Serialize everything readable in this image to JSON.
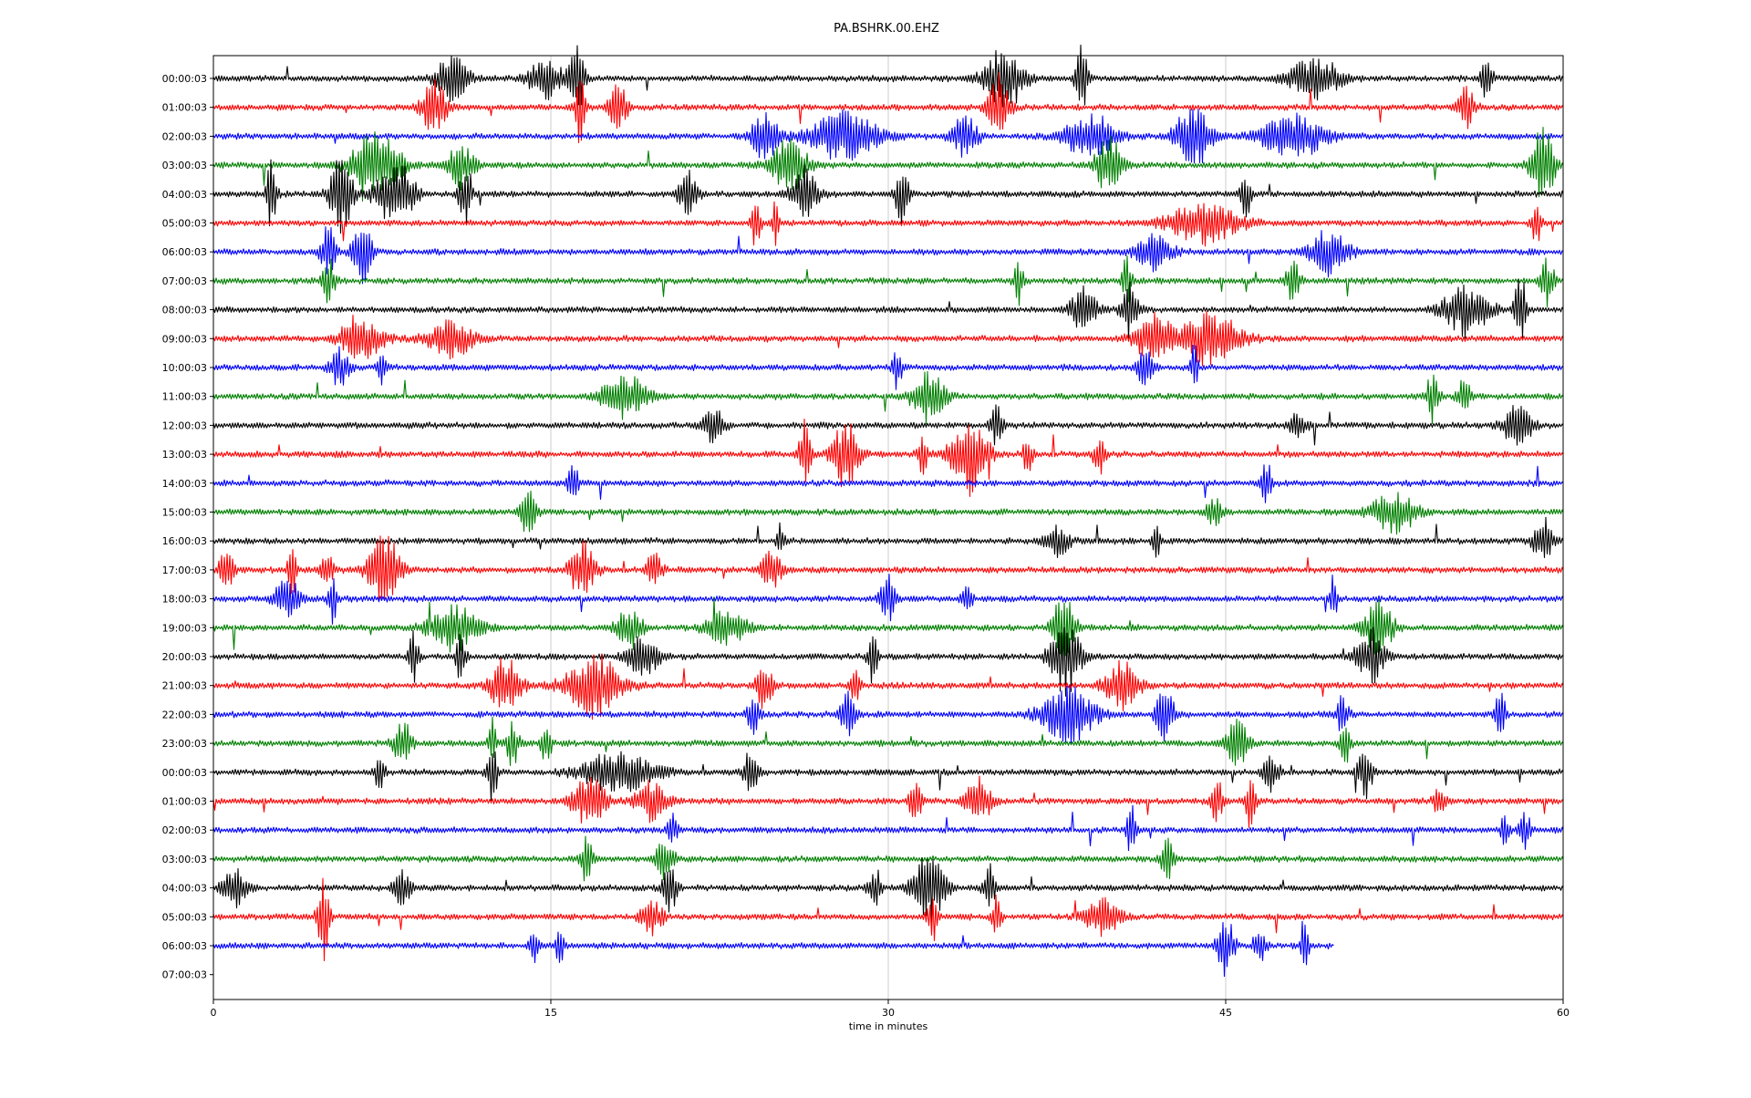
{
  "chart_data": {
    "type": "line",
    "title": "PA.BSHRK.00.EHZ",
    "xlabel": "time in minutes",
    "ylabel": "",
    "xlim": [
      0,
      60
    ],
    "x_ticks": [
      "0",
      "15",
      "30",
      "45",
      "60"
    ],
    "x_tick_values": [
      0,
      15,
      30,
      45,
      60
    ],
    "vertical_grid": true,
    "grid_color": "#cccccc",
    "row_labels": [
      "00:00:03",
      "01:00:03",
      "02:00:03",
      "03:00:03",
      "04:00:03",
      "05:00:03",
      "06:00:03",
      "07:00:03",
      "08:00:03",
      "09:00:03",
      "10:00:03",
      "11:00:03",
      "12:00:03",
      "13:00:03",
      "14:00:03",
      "15:00:03",
      "16:00:03",
      "17:00:03",
      "18:00:03",
      "19:00:03",
      "20:00:03",
      "21:00:03",
      "22:00:03",
      "23:00:03",
      "00:00:03",
      "01:00:03",
      "02:00:03",
      "03:00:03",
      "04:00:03",
      "05:00:03",
      "06:00:03",
      "07:00:03"
    ],
    "color_cycle": [
      "#000000",
      "#ff0000",
      "#0000ff",
      "#008000"
    ],
    "trace_end_minutes": [
      60,
      60,
      60,
      60,
      60,
      60,
      60,
      60,
      60,
      60,
      60,
      60,
      60,
      60,
      60,
      60,
      60,
      60,
      60,
      60,
      60,
      60,
      60,
      60,
      60,
      60,
      60,
      60,
      60,
      60,
      49.8,
      0
    ],
    "bursts": [
      [
        [
          10.6,
          1.2,
          0.8
        ],
        [
          14.8,
          1.4,
          0.7
        ],
        [
          16.2,
          0.6,
          1
        ],
        [
          35.2,
          1.6,
          1.1
        ],
        [
          38.6,
          0.4,
          1.1
        ],
        [
          49,
          2.2,
          0.7
        ],
        [
          56.6,
          0.4,
          0.8
        ]
      ],
      [
        [
          9.8,
          1,
          0.9
        ],
        [
          16.3,
          0.3,
          1.3
        ],
        [
          18,
          0.6,
          0.9
        ],
        [
          34.9,
          0.8,
          1.2
        ],
        [
          55.7,
          0.6,
          0.7
        ]
      ],
      [
        [
          24.5,
          1,
          0.9
        ],
        [
          28,
          3,
          0.8
        ],
        [
          33.4,
          1,
          0.7
        ],
        [
          39,
          2,
          0.8
        ],
        [
          43.6,
          1.5,
          1.1
        ],
        [
          48,
          2.5,
          0.8
        ]
      ],
      [
        [
          7.2,
          2,
          1.2
        ],
        [
          11,
          1,
          0.8
        ],
        [
          25.6,
          1.5,
          0.9
        ],
        [
          39.8,
          1,
          1
        ],
        [
          59.1,
          0.9,
          1.5
        ]
      ],
      [
        [
          2.6,
          0.3,
          1.5
        ],
        [
          5.7,
          0.9,
          1.3
        ],
        [
          8.1,
          1.5,
          1.2
        ],
        [
          11.2,
          0.4,
          1.3
        ],
        [
          21.1,
          0.7,
          0.9
        ],
        [
          26.3,
          1,
          1
        ],
        [
          30.6,
          0.4,
          1.2
        ],
        [
          45.9,
          0.3,
          0.8
        ]
      ],
      [
        [
          24.1,
          0.3,
          0.9
        ],
        [
          25,
          0.2,
          0.8
        ],
        [
          44,
          3,
          0.7
        ],
        [
          58.8,
          0.3,
          0.8
        ]
      ],
      [
        [
          5.1,
          0.5,
          1
        ],
        [
          6.6,
          0.6,
          1.5
        ],
        [
          41.8,
          1.5,
          0.6
        ],
        [
          49.6,
          1.5,
          0.8
        ]
      ],
      [
        [
          5.1,
          0.5,
          0.8
        ],
        [
          35.8,
          0.3,
          0.8
        ],
        [
          40.6,
          0.3,
          0.9
        ],
        [
          48,
          0.5,
          0.7
        ],
        [
          59.3,
          0.5,
          0.8
        ]
      ],
      [
        [
          38.7,
          1,
          0.8
        ],
        [
          40.7,
          0.6,
          1
        ],
        [
          55.7,
          1.8,
          0.9
        ],
        [
          58.1,
          0.4,
          1.2
        ]
      ],
      [
        [
          6.6,
          1.8,
          0.7
        ],
        [
          10.5,
          1.8,
          0.7
        ],
        [
          41.8,
          1.5,
          0.8
        ],
        [
          44.3,
          2.5,
          0.9
        ]
      ],
      [
        [
          5.6,
          0.7,
          0.7
        ],
        [
          7.5,
          0.3,
          0.6
        ],
        [
          30.4,
          0.3,
          0.7
        ],
        [
          41.4,
          0.6,
          0.6
        ],
        [
          43.6,
          0.2,
          0.8
        ]
      ],
      [
        [
          18.3,
          1.8,
          0.8
        ],
        [
          31.8,
          1.3,
          0.9
        ],
        [
          54.2,
          0.4,
          0.9
        ],
        [
          55.6,
          0.4,
          0.8
        ]
      ],
      [
        [
          22.2,
          0.8,
          0.6
        ],
        [
          34.8,
          0.4,
          0.7
        ],
        [
          48.2,
          0.6,
          0.5
        ],
        [
          58,
          1.1,
          0.8
        ]
      ],
      [
        [
          26.3,
          0.4,
          1.2
        ],
        [
          28.1,
          1,
          1.2
        ],
        [
          31.5,
          0.3,
          0.8
        ],
        [
          33.6,
          1.4,
          1.4
        ],
        [
          36.2,
          0.3,
          0.7
        ],
        [
          39.4,
          0.4,
          0.7
        ]
      ],
      [
        [
          16,
          0.3,
          0.9
        ],
        [
          46.8,
          0.3,
          0.9
        ]
      ],
      [
        [
          14,
          0.6,
          0.8
        ],
        [
          44.5,
          0.5,
          0.6
        ],
        [
          52.5,
          1.8,
          0.7
        ]
      ],
      [
        [
          25.2,
          0.2,
          0.7
        ],
        [
          37.5,
          1,
          0.5
        ],
        [
          41.9,
          0.2,
          0.8
        ],
        [
          59.1,
          0.7,
          0.8
        ]
      ],
      [
        [
          0.6,
          0.5,
          0.9
        ],
        [
          3.5,
          0.3,
          0.9
        ],
        [
          5,
          0.4,
          0.8
        ],
        [
          7.6,
          1.2,
          1.3
        ],
        [
          16.4,
          1,
          1
        ],
        [
          19.6,
          0.5,
          0.7
        ],
        [
          24.8,
          0.8,
          0.6
        ]
      ],
      [
        [
          3.3,
          1,
          0.7
        ],
        [
          5.3,
          0.3,
          0.8
        ],
        [
          30,
          0.6,
          0.8
        ],
        [
          33.5,
          0.3,
          0.6
        ],
        [
          49.8,
          0.2,
          0.9
        ]
      ],
      [
        [
          10.7,
          2,
          0.8
        ],
        [
          18.5,
          1,
          0.7
        ],
        [
          22.8,
          1.6,
          0.6
        ],
        [
          37.8,
          0.8,
          1.2
        ],
        [
          51.8,
          1.2,
          0.9
        ]
      ],
      [
        [
          8.9,
          0.3,
          0.9
        ],
        [
          11,
          0.3,
          1
        ],
        [
          19.1,
          1.2,
          0.7
        ],
        [
          29.3,
          0.3,
          0.9
        ],
        [
          37.9,
          1.2,
          1.3
        ],
        [
          51.4,
          1,
          1
        ]
      ],
      [
        [
          13,
          1.2,
          1
        ],
        [
          16.9,
          2.2,
          1.1
        ],
        [
          24.5,
          0.6,
          0.8
        ],
        [
          28.5,
          0.3,
          0.7
        ],
        [
          40.4,
          1.4,
          0.8
        ]
      ],
      [
        [
          24,
          0.4,
          0.7
        ],
        [
          28.2,
          0.5,
          0.8
        ],
        [
          38,
          2.2,
          1
        ],
        [
          42.3,
          0.6,
          1.1
        ],
        [
          50.2,
          0.4,
          0.7
        ],
        [
          57.2,
          0.3,
          0.9
        ]
      ],
      [
        [
          8.4,
          0.6,
          0.9
        ],
        [
          12.4,
          0.2,
          1
        ],
        [
          13.3,
          0.4,
          0.8
        ],
        [
          14.8,
          0.3,
          0.8
        ],
        [
          45.5,
          0.8,
          0.8
        ],
        [
          50.3,
          0.3,
          0.9
        ]
      ],
      [
        [
          7.4,
          0.3,
          0.8
        ],
        [
          12.4,
          0.3,
          1.1
        ],
        [
          18,
          3,
          0.7
        ],
        [
          23.9,
          0.5,
          0.8
        ],
        [
          47,
          0.6,
          0.6
        ],
        [
          51.2,
          0.5,
          0.9
        ]
      ],
      [
        [
          16.7,
          1.4,
          0.8
        ],
        [
          19.5,
          1.2,
          0.7
        ],
        [
          31.2,
          0.4,
          0.9
        ],
        [
          34,
          1,
          0.8
        ],
        [
          44.6,
          0.4,
          0.8
        ],
        [
          46.1,
          0.3,
          0.9
        ],
        [
          54.5,
          0.4,
          0.6
        ]
      ],
      [
        [
          20.4,
          0.3,
          0.6
        ],
        [
          40.8,
          0.3,
          0.9
        ],
        [
          57.4,
          0.2,
          0.8
        ],
        [
          58.3,
          0.4,
          0.6
        ]
      ],
      [
        [
          16.6,
          0.4,
          0.8
        ],
        [
          20.1,
          0.7,
          0.7
        ],
        [
          42.4,
          0.4,
          0.9
        ]
      ],
      [
        [
          0.9,
          0.9,
          0.7
        ],
        [
          8.4,
          0.6,
          0.6
        ],
        [
          20.3,
          0.5,
          0.8
        ],
        [
          29.4,
          0.4,
          0.8
        ],
        [
          31.8,
          1.2,
          1.3
        ],
        [
          34.5,
          0.4,
          0.8
        ]
      ],
      [
        [
          4.9,
          0.4,
          1.5
        ],
        [
          19.5,
          0.8,
          0.6
        ],
        [
          32,
          0.3,
          1.2
        ],
        [
          34.8,
          0.3,
          0.8
        ],
        [
          39.5,
          1.4,
          0.6
        ]
      ],
      [
        [
          14.3,
          0.3,
          0.7
        ],
        [
          15.4,
          0.2,
          0.9
        ],
        [
          45,
          0.6,
          1
        ],
        [
          46.5,
          0.4,
          0.7
        ],
        [
          48.5,
          0.2,
          1.1
        ]
      ],
      []
    ]
  }
}
